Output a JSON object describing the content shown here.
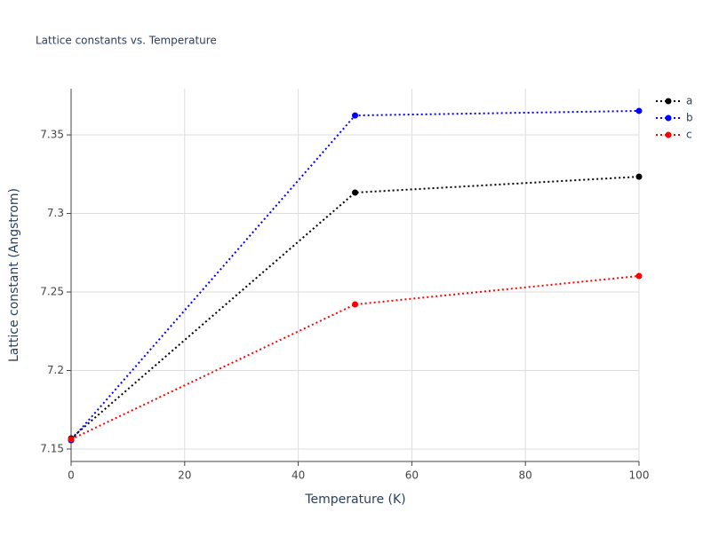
{
  "chart_data": {
    "type": "line",
    "title": "Lattice constants vs. Temperature",
    "x_label": "Temperature (K)",
    "y_label": "Lattice constant (Angstrom)",
    "series": [
      {
        "name": "a",
        "color": "#000000",
        "x": [
          0,
          50,
          100
        ],
        "values": [
          7.1568,
          7.3133,
          7.3234
        ]
      },
      {
        "name": "b",
        "color": "#0000ff",
        "x": [
          0,
          50,
          100
        ],
        "values": [
          7.1556,
          7.3624,
          7.3653
        ]
      },
      {
        "name": "c",
        "color": "#ff0000",
        "x": [
          0,
          50,
          100
        ],
        "values": [
          7.1562,
          7.2421,
          7.2602
        ]
      }
    ],
    "xlim": [
      0,
      100
    ],
    "xticks": [
      0,
      20,
      40,
      60,
      80,
      100
    ],
    "ylim": [
      7.1421,
      7.3794
    ],
    "yticks": [
      7.15,
      7.2,
      7.25,
      7.3,
      7.35
    ],
    "grid": true,
    "legend": "top-right"
  }
}
